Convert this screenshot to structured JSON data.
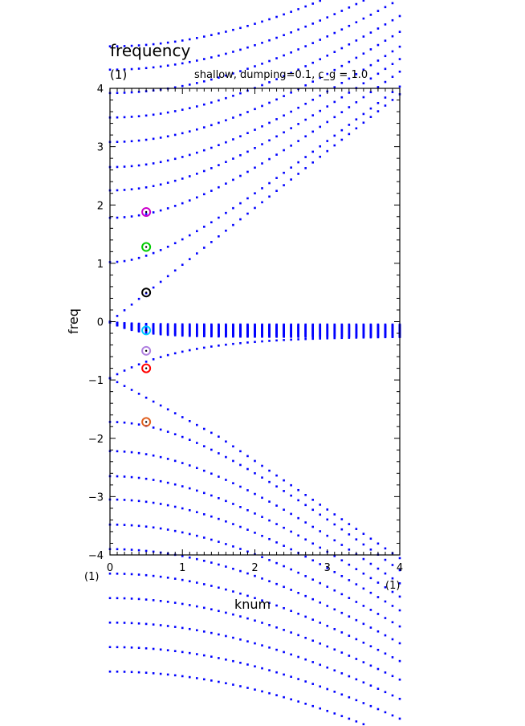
{
  "header": {
    "title": "frequency",
    "panel_label": "(1)",
    "subtitle": "shallow, dumping=0.1, c_g = 1.0"
  },
  "axis_tags": {
    "x_left": "(1)",
    "x_right": "(1)"
  },
  "colors": {
    "dots": "#0000ff",
    "axes": "#000000",
    "background": "#ffffff"
  },
  "chart_data": {
    "type": "scatter",
    "title": "frequency",
    "subtitle": "shallow, dumping=0.1, c_g = 1.0",
    "xlabel": "knum",
    "ylabel": "freq",
    "xlim": [
      0,
      4
    ],
    "ylim": [
      -4,
      4
    ],
    "xticks": [
      "0",
      "1",
      "2",
      "3",
      "4"
    ],
    "yticks": [
      "4",
      "3",
      "2",
      "1",
      "0",
      "−1",
      "−2",
      "−3",
      "−4"
    ],
    "grid": false,
    "dispersion_curves": {
      "gravity_branch_index": [
        0,
        1,
        2,
        3,
        4,
        5,
        6,
        7,
        8,
        9,
        10,
        11,
        12,
        13
      ],
      "inertia_gravity_base_frequencies": [
        0.0,
        1.02,
        1.78,
        2.25,
        2.65,
        3.08,
        3.5,
        3.92,
        4.32,
        4.72
      ],
      "rossby_branch_count": 24,
      "rossby_range": [
        -0.25,
        -0.04
      ],
      "kelvin_like_negative_base": -0.97,
      "negative_branch_base_frequencies": [
        -1.72,
        -2.22,
        -2.65,
        -3.05,
        -3.48,
        -3.9,
        -4.32,
        -4.74,
        -5.16,
        -5.58,
        -6.0
      ]
    },
    "highlighted_points": [
      {
        "x": 0.5,
        "y": 1.88,
        "color": "#cc00cc"
      },
      {
        "x": 0.5,
        "y": 1.28,
        "color": "#00cc00"
      },
      {
        "x": 0.5,
        "y": 0.5,
        "color": "#000000"
      },
      {
        "x": 0.5,
        "y": -0.15,
        "color": "#00ccff"
      },
      {
        "x": 0.5,
        "y": -0.5,
        "color": "#b080e0"
      },
      {
        "x": 0.5,
        "y": -0.8,
        "color": "#ff0000"
      },
      {
        "x": 0.5,
        "y": -1.72,
        "color": "#e06020"
      }
    ]
  }
}
